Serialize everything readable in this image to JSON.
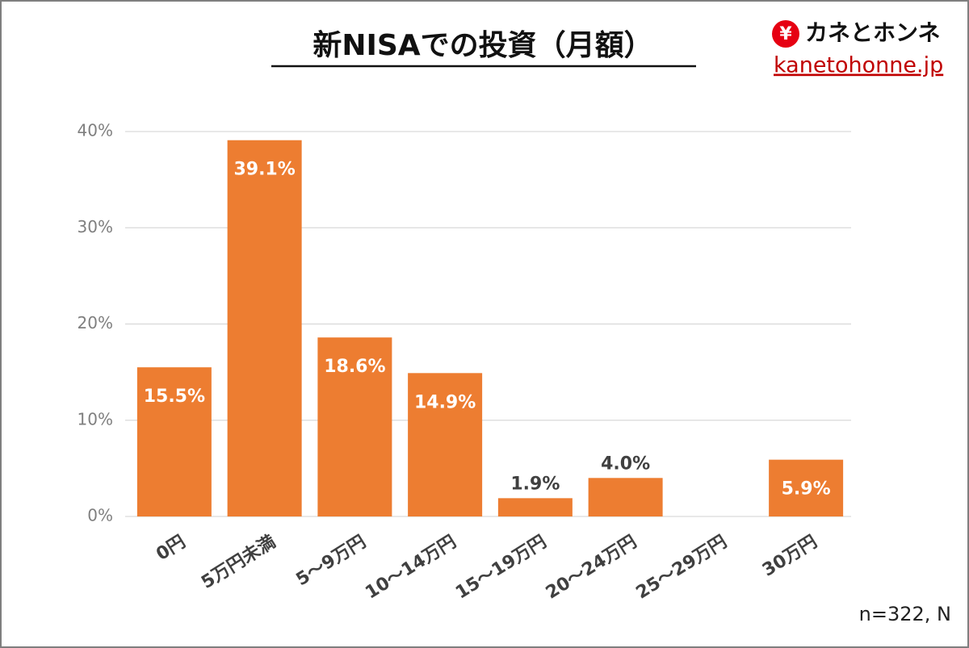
{
  "chart_data": {
    "type": "bar",
    "title": "新NISAでの投資（月額）",
    "categories": [
      "0円",
      "5万円未満",
      "5〜9万円",
      "10〜14万円",
      "15〜19万円",
      "20〜24万円",
      "25〜29万円",
      "30万円"
    ],
    "values": [
      15.5,
      39.1,
      18.6,
      14.9,
      1.9,
      4.0,
      null,
      5.9
    ],
    "value_labels": [
      "15.5%",
      "39.1%",
      "18.6%",
      "14.9%",
      "1.9%",
      "4.0%",
      null,
      "5.9%"
    ],
    "color": "#ed7d31",
    "ylim": [
      0,
      40
    ],
    "yticks": [
      {
        "value": 0,
        "label": "0%"
      },
      {
        "value": 10,
        "label": "10%"
      },
      {
        "value": 20,
        "label": "20%"
      },
      {
        "value": 30,
        "label": "30%"
      },
      {
        "value": 40,
        "label": "40%"
      }
    ],
    "grid": true,
    "note": "n=322, N"
  },
  "logo": {
    "icon": "¥",
    "name": "カネとホンネ",
    "url": "kanetohonne.jp"
  }
}
